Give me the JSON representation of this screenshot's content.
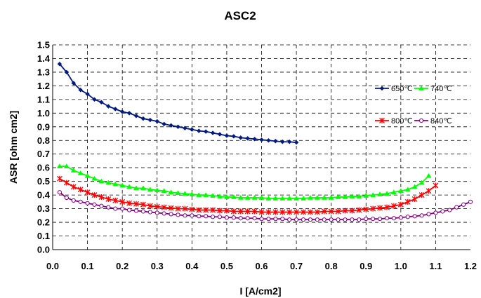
{
  "chart_data": {
    "type": "line",
    "title": "ASC2",
    "xlabel": "I [A/cm2]",
    "ylabel": "ASR [ohm cm2]",
    "xlim": [
      0.0,
      1.2
    ],
    "ylim": [
      0.0,
      1.5
    ],
    "xticks": [
      "0.0",
      "0.1",
      "0.2",
      "0.3",
      "0.4",
      "0.5",
      "0.6",
      "0.7",
      "0.8",
      "0.9",
      "1.0",
      "1.1",
      "1.2"
    ],
    "yticks": [
      "0.0",
      "0.1",
      "0.2",
      "0.3",
      "0.4",
      "0.5",
      "0.6",
      "0.7",
      "0.8",
      "0.9",
      "1.0",
      "1.1",
      "1.2",
      "1.3",
      "1.4",
      "1.5"
    ],
    "grid": true,
    "legend_position": "top-right",
    "series": [
      {
        "name": "650℃",
        "color": "#001a80",
        "marker": "diamond",
        "x": [
          0.02,
          0.04,
          0.06,
          0.08,
          0.1,
          0.12,
          0.14,
          0.16,
          0.18,
          0.2,
          0.22,
          0.24,
          0.26,
          0.28,
          0.3,
          0.32,
          0.34,
          0.36,
          0.38,
          0.4,
          0.42,
          0.44,
          0.46,
          0.48,
          0.5,
          0.52,
          0.54,
          0.56,
          0.58,
          0.6,
          0.62,
          0.64,
          0.66,
          0.68,
          0.7
        ],
        "y": [
          1.36,
          1.3,
          1.22,
          1.17,
          1.14,
          1.1,
          1.08,
          1.05,
          1.03,
          1.01,
          1.0,
          0.98,
          0.96,
          0.95,
          0.94,
          0.92,
          0.91,
          0.9,
          0.89,
          0.88,
          0.87,
          0.865,
          0.855,
          0.845,
          0.835,
          0.83,
          0.82,
          0.815,
          0.81,
          0.805,
          0.8,
          0.795,
          0.79,
          0.79,
          0.785
        ]
      },
      {
        "name": "740℃",
        "color": "#00ff00",
        "marker": "triangle",
        "x": [
          0.02,
          0.04,
          0.06,
          0.08,
          0.1,
          0.12,
          0.14,
          0.16,
          0.18,
          0.2,
          0.22,
          0.24,
          0.26,
          0.28,
          0.3,
          0.32,
          0.34,
          0.36,
          0.38,
          0.4,
          0.42,
          0.44,
          0.46,
          0.48,
          0.5,
          0.52,
          0.54,
          0.56,
          0.58,
          0.6,
          0.62,
          0.64,
          0.66,
          0.68,
          0.7,
          0.72,
          0.74,
          0.76,
          0.78,
          0.8,
          0.82,
          0.84,
          0.86,
          0.88,
          0.9,
          0.92,
          0.94,
          0.96,
          0.98,
          1.0,
          1.02,
          1.04,
          1.06,
          1.08
        ],
        "y": [
          0.61,
          0.61,
          0.58,
          0.56,
          0.54,
          0.52,
          0.5,
          0.49,
          0.48,
          0.47,
          0.46,
          0.45,
          0.45,
          0.44,
          0.435,
          0.43,
          0.42,
          0.415,
          0.41,
          0.405,
          0.4,
          0.4,
          0.395,
          0.39,
          0.385,
          0.385,
          0.38,
          0.38,
          0.38,
          0.38,
          0.375,
          0.375,
          0.375,
          0.375,
          0.375,
          0.375,
          0.38,
          0.38,
          0.38,
          0.38,
          0.385,
          0.385,
          0.39,
          0.39,
          0.395,
          0.4,
          0.405,
          0.41,
          0.42,
          0.43,
          0.44,
          0.46,
          0.49,
          0.54
        ]
      },
      {
        "name": "800℃",
        "color": "#ff0000",
        "marker": "x",
        "x": [
          0.02,
          0.04,
          0.06,
          0.08,
          0.1,
          0.12,
          0.14,
          0.16,
          0.18,
          0.2,
          0.22,
          0.24,
          0.26,
          0.28,
          0.3,
          0.32,
          0.34,
          0.36,
          0.38,
          0.4,
          0.42,
          0.44,
          0.46,
          0.48,
          0.5,
          0.52,
          0.54,
          0.56,
          0.58,
          0.6,
          0.62,
          0.64,
          0.66,
          0.68,
          0.7,
          0.72,
          0.74,
          0.76,
          0.78,
          0.8,
          0.82,
          0.84,
          0.86,
          0.88,
          0.9,
          0.92,
          0.94,
          0.96,
          0.98,
          1.0,
          1.02,
          1.04,
          1.06,
          1.08,
          1.1
        ],
        "y": [
          0.52,
          0.49,
          0.46,
          0.44,
          0.42,
          0.4,
          0.385,
          0.37,
          0.36,
          0.35,
          0.34,
          0.335,
          0.33,
          0.32,
          0.315,
          0.31,
          0.305,
          0.3,
          0.3,
          0.295,
          0.29,
          0.29,
          0.29,
          0.285,
          0.285,
          0.28,
          0.28,
          0.28,
          0.28,
          0.275,
          0.275,
          0.275,
          0.275,
          0.275,
          0.275,
          0.275,
          0.275,
          0.275,
          0.28,
          0.28,
          0.28,
          0.285,
          0.285,
          0.29,
          0.295,
          0.3,
          0.305,
          0.31,
          0.32,
          0.33,
          0.35,
          0.37,
          0.4,
          0.43,
          0.47
        ]
      },
      {
        "name": "840℃",
        "color": "#800080",
        "marker": "circle",
        "x": [
          0.02,
          0.04,
          0.06,
          0.08,
          0.1,
          0.12,
          0.14,
          0.16,
          0.18,
          0.2,
          0.22,
          0.24,
          0.26,
          0.28,
          0.3,
          0.32,
          0.34,
          0.36,
          0.38,
          0.4,
          0.42,
          0.44,
          0.46,
          0.48,
          0.5,
          0.52,
          0.54,
          0.56,
          0.58,
          0.6,
          0.62,
          0.64,
          0.66,
          0.68,
          0.7,
          0.72,
          0.74,
          0.76,
          0.78,
          0.8,
          0.82,
          0.84,
          0.86,
          0.88,
          0.9,
          0.92,
          0.94,
          0.96,
          0.98,
          1.0,
          1.02,
          1.04,
          1.06,
          1.08,
          1.1,
          1.12,
          1.14,
          1.16,
          1.18,
          1.2
        ],
        "y": [
          0.42,
          0.38,
          0.36,
          0.35,
          0.34,
          0.33,
          0.32,
          0.31,
          0.3,
          0.3,
          0.29,
          0.285,
          0.28,
          0.275,
          0.27,
          0.265,
          0.26,
          0.255,
          0.25,
          0.25,
          0.245,
          0.245,
          0.24,
          0.24,
          0.235,
          0.235,
          0.23,
          0.23,
          0.23,
          0.225,
          0.225,
          0.225,
          0.225,
          0.22,
          0.22,
          0.22,
          0.22,
          0.22,
          0.22,
          0.22,
          0.22,
          0.22,
          0.22,
          0.22,
          0.225,
          0.225,
          0.225,
          0.23,
          0.23,
          0.235,
          0.24,
          0.245,
          0.25,
          0.26,
          0.27,
          0.28,
          0.29,
          0.31,
          0.33,
          0.35
        ]
      }
    ]
  }
}
